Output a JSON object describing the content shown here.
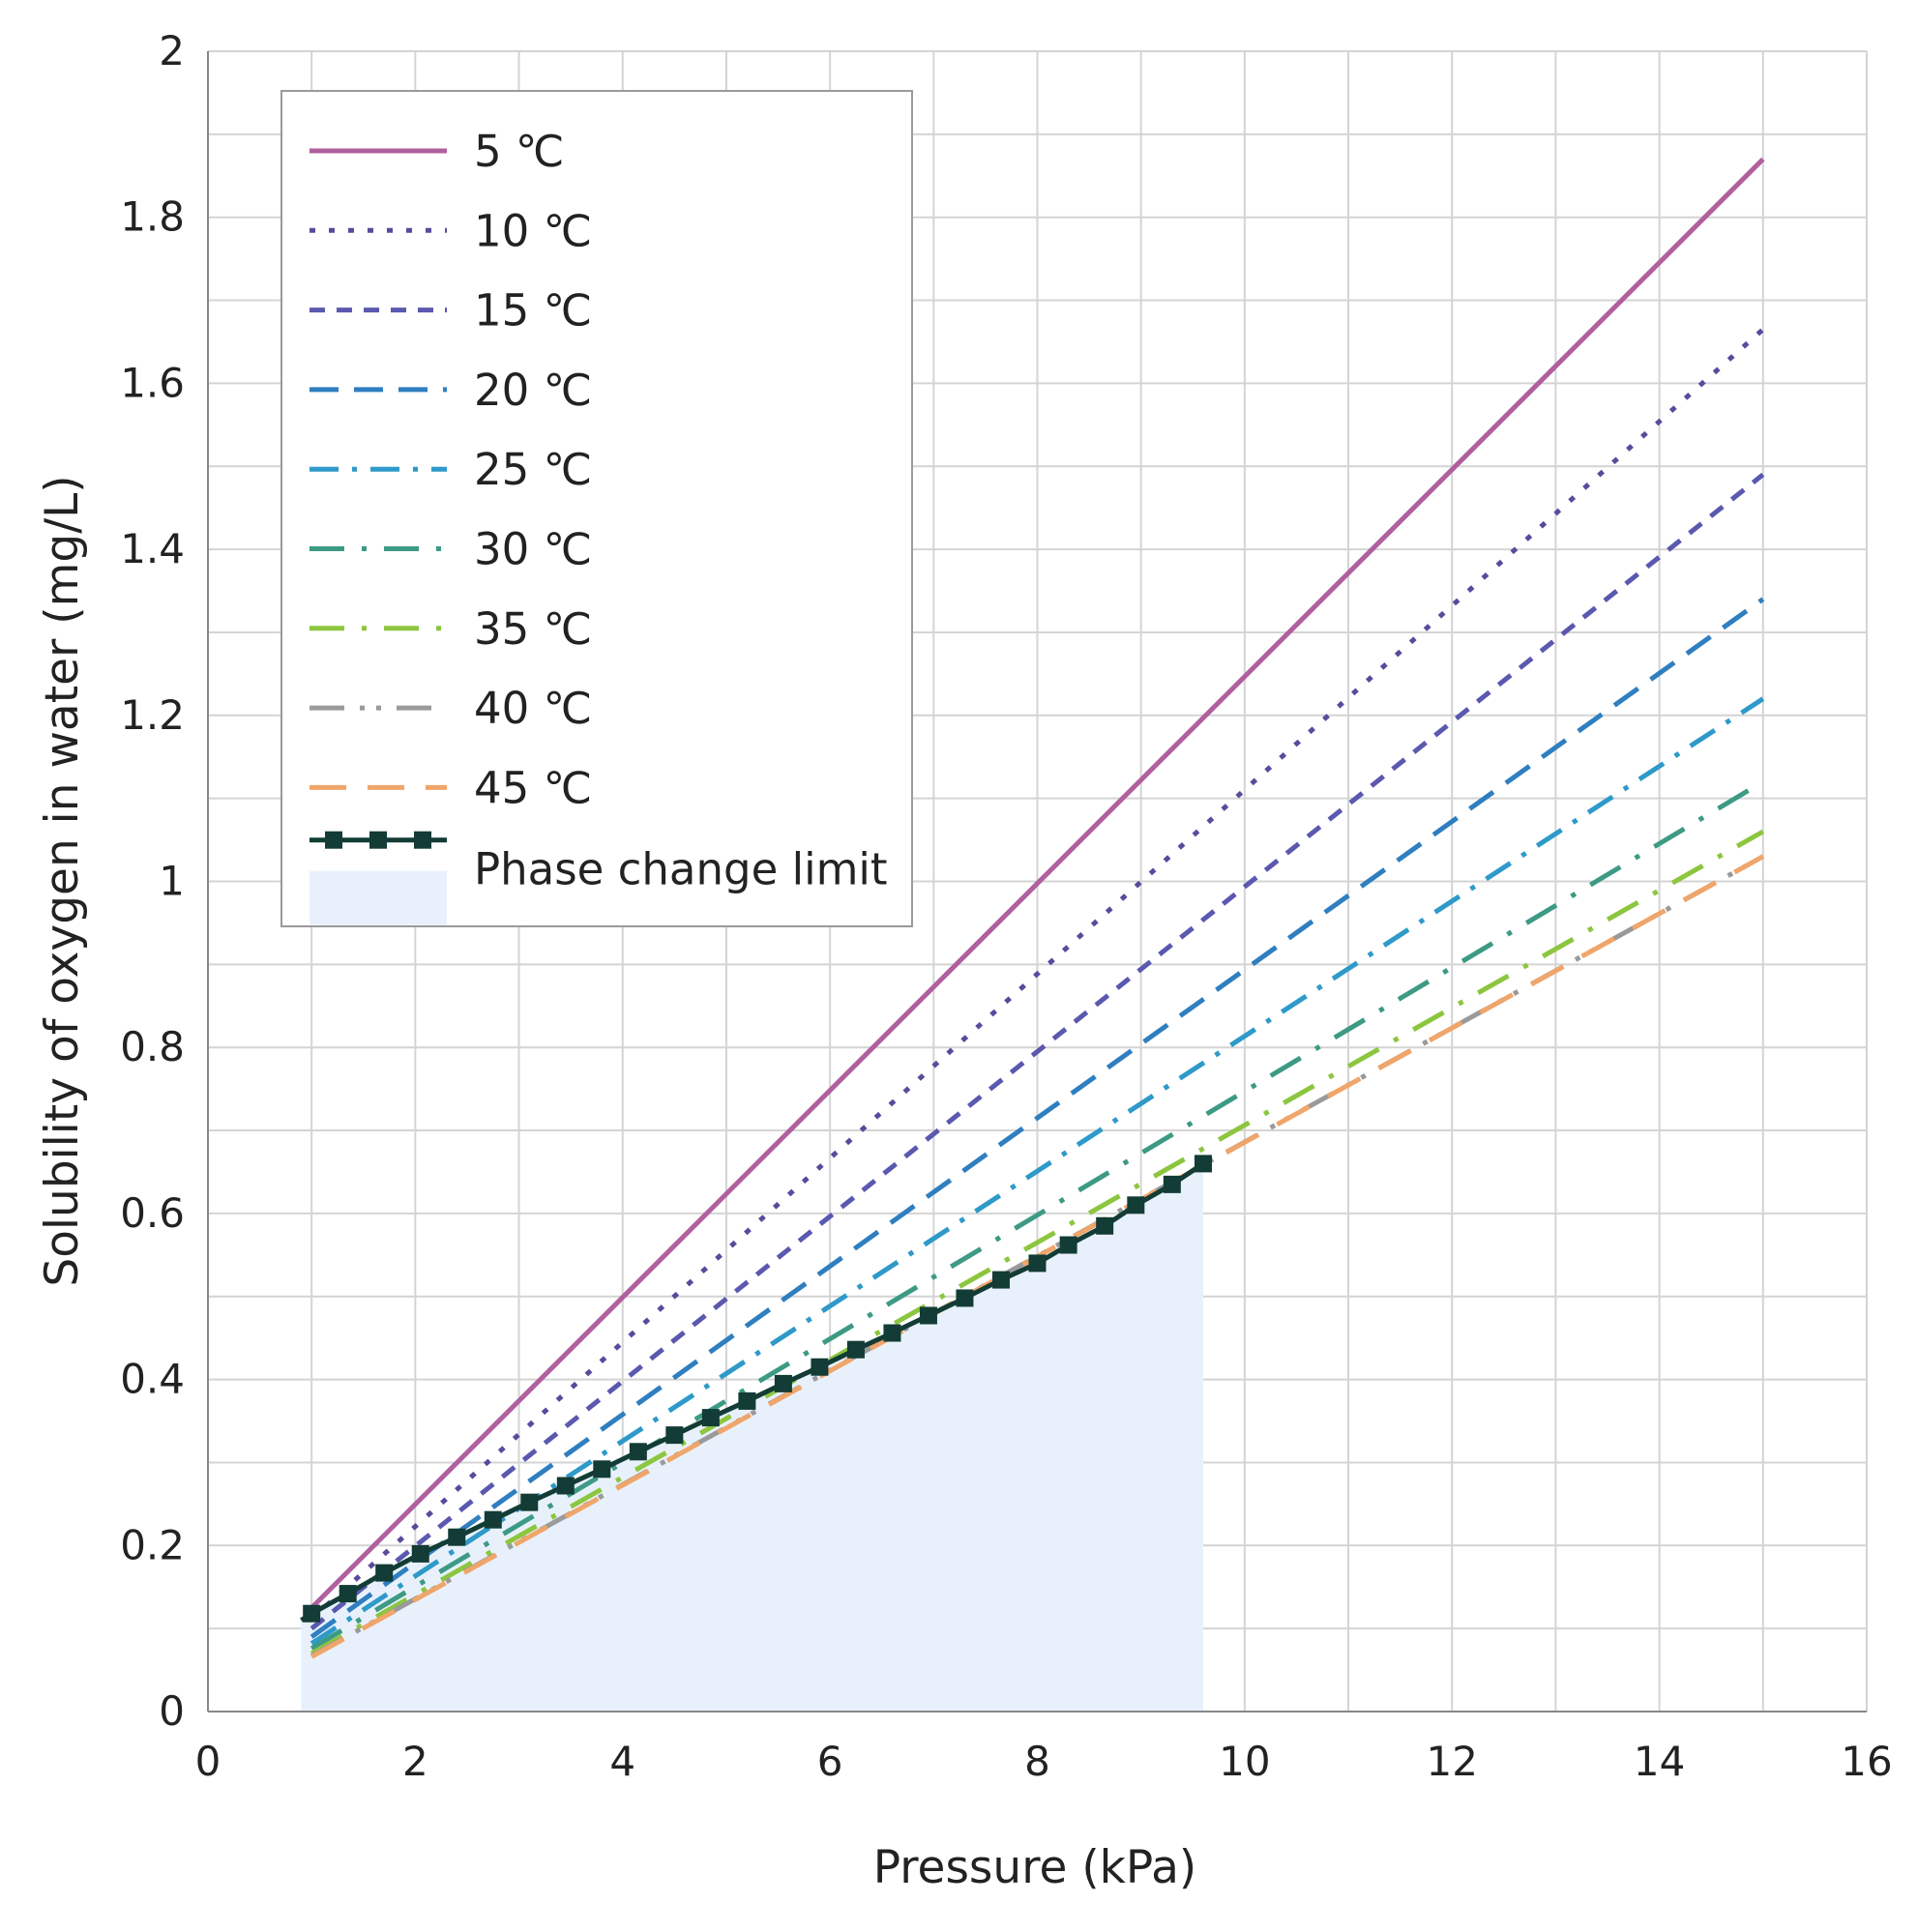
{
  "chart_data": {
    "type": "line",
    "xlabel": "Pressure (kPa)",
    "ylabel": "Solubility of oxygen in water (mg/L)",
    "xlim": [
      0,
      16
    ],
    "ylim": [
      0,
      2
    ],
    "x_ticks": [
      "0",
      "2",
      "4",
      "6",
      "8",
      "10",
      "12",
      "14",
      "16"
    ],
    "y_ticks": [
      "0",
      "0.2",
      "0.4",
      "0.6",
      "0.8",
      "1",
      "1.2",
      "1.4",
      "1.6",
      "1.8",
      "2"
    ],
    "grid": true,
    "legend_position": "top-left",
    "series": [
      {
        "name": "5 ℃",
        "color": "#b0609e",
        "style": "solid",
        "x": [
          1,
          15
        ],
        "y": [
          0.125,
          1.87
        ]
      },
      {
        "name": "10 ℃",
        "color": "#5a4a9c",
        "style": "dotted",
        "x": [
          1,
          15
        ],
        "y": [
          0.112,
          1.665
        ]
      },
      {
        "name": "15 ℃",
        "color": "#5b58b0",
        "style": "dashed",
        "x": [
          1,
          15
        ],
        "y": [
          0.1,
          1.49
        ]
      },
      {
        "name": "20 ℃",
        "color": "#2f7fc0",
        "style": "long-dashed",
        "x": [
          1,
          15
        ],
        "y": [
          0.09,
          1.34
        ]
      },
      {
        "name": "25 ℃",
        "color": "#2e9ac9",
        "style": "dash-dot",
        "x": [
          1,
          15
        ],
        "y": [
          0.082,
          1.22
        ]
      },
      {
        "name": "30 ℃",
        "color": "#3d9a84",
        "style": "long-dash-dot",
        "x": [
          1,
          15
        ],
        "y": [
          0.076,
          1.12
        ]
      },
      {
        "name": "35 ℃",
        "color": "#8cc63f",
        "style": "long-dash-dot",
        "x": [
          1,
          15
        ],
        "y": [
          0.07,
          1.06
        ]
      },
      {
        "name": "40 ℃",
        "color": "#9a9a9a",
        "style": "long-dash-dot-dot",
        "x": [
          1,
          15
        ],
        "y": [
          0.067,
          1.03
        ]
      },
      {
        "name": "45 ℃",
        "color": "#f0a56a",
        "style": "long-dash",
        "x": [
          1,
          15
        ],
        "y": [
          0.066,
          1.03
        ]
      },
      {
        "name": "Phase change limit",
        "color": "#123c35",
        "style": "solid-marker",
        "fill": "#e8f1fb",
        "x": [
          0.9,
          1.0,
          1.35,
          1.7,
          2.05,
          2.4,
          2.75,
          3.1,
          3.45,
          3.8,
          4.15,
          4.5,
          4.85,
          5.2,
          5.55,
          5.9,
          6.25,
          6.6,
          6.95,
          7.3,
          7.65,
          8.0,
          8.3,
          8.65,
          8.95,
          9.3,
          9.6
        ],
        "y": [
          0.11,
          0.118,
          0.142,
          0.167,
          0.19,
          0.21,
          0.231,
          0.252,
          0.272,
          0.292,
          0.313,
          0.333,
          0.354,
          0.374,
          0.395,
          0.415,
          0.436,
          0.456,
          0.477,
          0.498,
          0.52,
          0.54,
          0.562,
          0.585,
          0.61,
          0.635,
          0.66
        ]
      }
    ]
  }
}
